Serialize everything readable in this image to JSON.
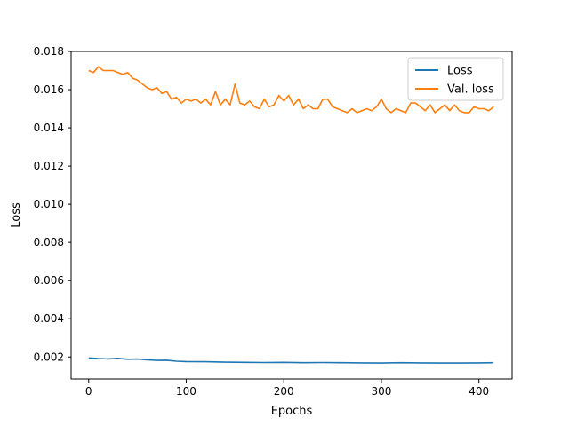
{
  "chart_data": {
    "type": "line",
    "title": "",
    "xlabel": "Epochs",
    "ylabel": "Loss",
    "xlim": [
      -18,
      434
    ],
    "ylim": [
      0.00085,
      0.018
    ],
    "xticks": [
      0,
      100,
      200,
      300,
      400
    ],
    "yticks": [
      0.002,
      0.004,
      0.006,
      0.008,
      0.01,
      0.012,
      0.014,
      0.016,
      0.018
    ],
    "ytick_labels": [
      "0.002",
      "0.004",
      "0.006",
      "0.008",
      "0.010",
      "0.012",
      "0.014",
      "0.016",
      "0.018"
    ],
    "xtick_labels": [
      "0",
      "100",
      "200",
      "300",
      "400"
    ],
    "grid": false,
    "legend_position": "top-right",
    "series": [
      {
        "name": "Loss",
        "color": "#1f77b4",
        "x": [
          0,
          10,
          20,
          30,
          40,
          50,
          60,
          70,
          80,
          90,
          100,
          120,
          140,
          160,
          180,
          200,
          220,
          240,
          260,
          280,
          300,
          320,
          340,
          360,
          380,
          400,
          415
        ],
        "y": [
          0.00195,
          0.00192,
          0.0019,
          0.00193,
          0.00188,
          0.00189,
          0.00185,
          0.00182,
          0.00183,
          0.00178,
          0.00176,
          0.00175,
          0.00173,
          0.00172,
          0.00171,
          0.00172,
          0.0017,
          0.00171,
          0.0017,
          0.00169,
          0.00168,
          0.0017,
          0.00169,
          0.00168,
          0.00168,
          0.00169,
          0.0017
        ]
      },
      {
        "name": "Val. loss",
        "color": "#ff7f0e",
        "x": [
          0,
          5,
          10,
          15,
          20,
          25,
          30,
          35,
          40,
          45,
          50,
          55,
          60,
          65,
          70,
          75,
          80,
          85,
          90,
          95,
          100,
          105,
          110,
          115,
          120,
          125,
          130,
          135,
          140,
          145,
          150,
          155,
          160,
          165,
          170,
          175,
          180,
          185,
          190,
          195,
          200,
          205,
          210,
          215,
          220,
          225,
          230,
          235,
          240,
          245,
          250,
          255,
          260,
          265,
          270,
          275,
          280,
          285,
          290,
          295,
          300,
          305,
          310,
          315,
          320,
          325,
          330,
          335,
          340,
          345,
          350,
          355,
          360,
          365,
          370,
          375,
          380,
          385,
          390,
          395,
          400,
          405,
          410,
          415
        ],
        "y": [
          0.017,
          0.0169,
          0.0172,
          0.017,
          0.017,
          0.017,
          0.0169,
          0.0168,
          0.0169,
          0.0166,
          0.0165,
          0.0163,
          0.0161,
          0.016,
          0.0161,
          0.0158,
          0.0159,
          0.0155,
          0.0156,
          0.0153,
          0.0155,
          0.0154,
          0.0155,
          0.0153,
          0.0155,
          0.0152,
          0.0159,
          0.0152,
          0.0155,
          0.0152,
          0.0163,
          0.0153,
          0.0152,
          0.0154,
          0.0151,
          0.015,
          0.0155,
          0.0151,
          0.0152,
          0.0157,
          0.0154,
          0.0157,
          0.0152,
          0.0155,
          0.015,
          0.0152,
          0.015,
          0.015,
          0.0155,
          0.0155,
          0.0151,
          0.015,
          0.0149,
          0.0148,
          0.015,
          0.0148,
          0.0149,
          0.015,
          0.0149,
          0.0151,
          0.0155,
          0.015,
          0.0148,
          0.015,
          0.0149,
          0.0148,
          0.0153,
          0.0153,
          0.0151,
          0.0149,
          0.0152,
          0.0148,
          0.015,
          0.0152,
          0.0149,
          0.0152,
          0.0149,
          0.0148,
          0.0148,
          0.0151,
          0.015,
          0.015,
          0.0149,
          0.0151
        ]
      }
    ]
  }
}
